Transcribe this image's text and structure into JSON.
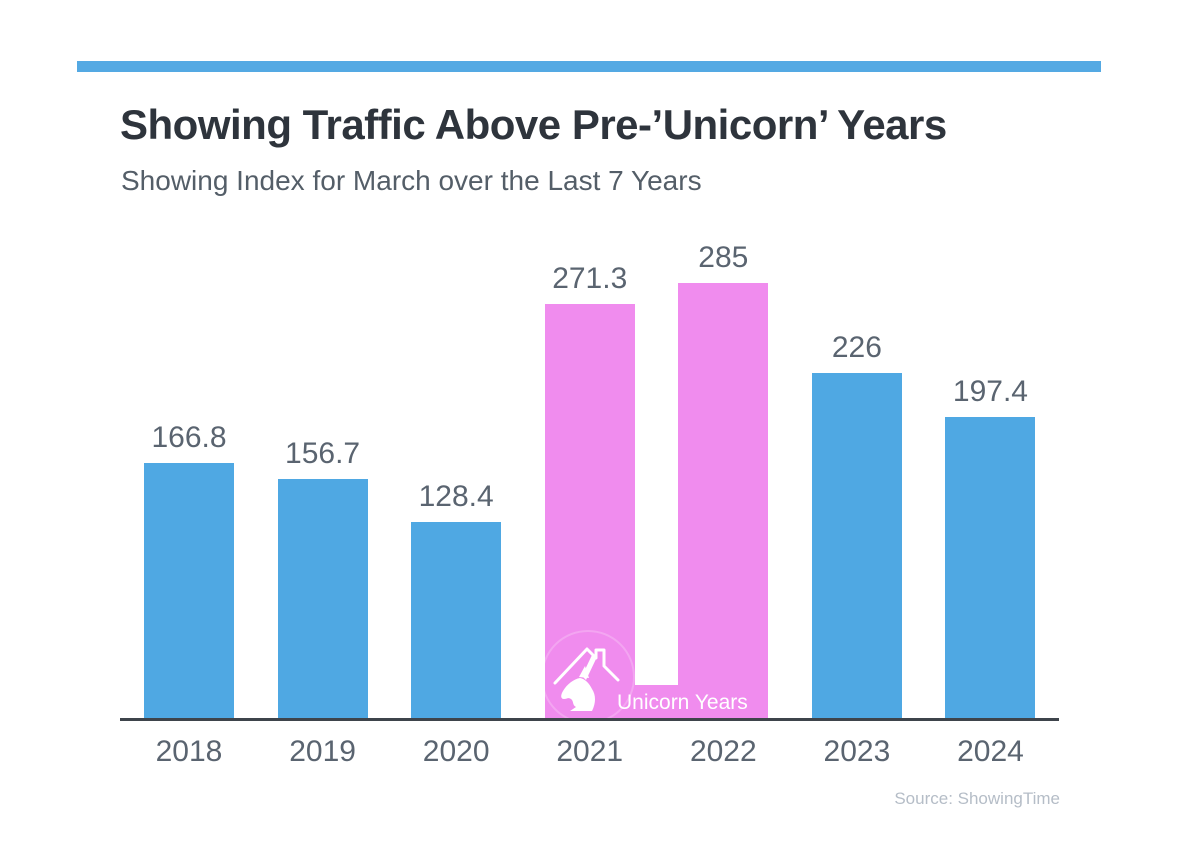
{
  "page": {
    "background": "#FFFFFF",
    "accent_rule_color": "#54A9E3"
  },
  "header": {
    "title": "Showing Traffic Above Pre-’Unicorn’ Years",
    "subtitle": "Showing Index for March over the Last 7 Years"
  },
  "chart_data": {
    "type": "bar",
    "title": "Showing Traffic Above Pre-’Unicorn’ Years",
    "subtitle": "Showing Index for March over the Last 7 Years",
    "categories": [
      "2018",
      "2019",
      "2020",
      "2021",
      "2022",
      "2023",
      "2024"
    ],
    "values": [
      166.8,
      156.7,
      128.4,
      271.3,
      285,
      226,
      197.4
    ],
    "value_labels": [
      "166.8",
      "156.7",
      "128.4",
      "271.3",
      "285",
      "226",
      "197.4"
    ],
    "bar_colors": [
      "#4FA8E3",
      "#4FA8E3",
      "#4FA8E3",
      "#F08CEE",
      "#F08CEE",
      "#4FA8E3",
      "#4FA8E3"
    ],
    "highlighted_categories": [
      "2021",
      "2022"
    ],
    "colors": {
      "default_bar": "#4FA8E3",
      "highlight_bar": "#F08CEE",
      "label_text": "#5A6470",
      "axis_line": "#3E444B",
      "title_text": "#2E343C",
      "subtitle_text": "#545E68",
      "source_text": "#B5BDC7"
    },
    "annotation": {
      "label": "Unicorn Years",
      "icon": "unicorn-house-icon",
      "text_color": "#FFFFFF"
    },
    "xlabel": "",
    "ylabel": "",
    "ylim": [
      0,
      285
    ],
    "grid": false,
    "legend": false
  },
  "footer": {
    "source": "Source: ShowingTime"
  }
}
